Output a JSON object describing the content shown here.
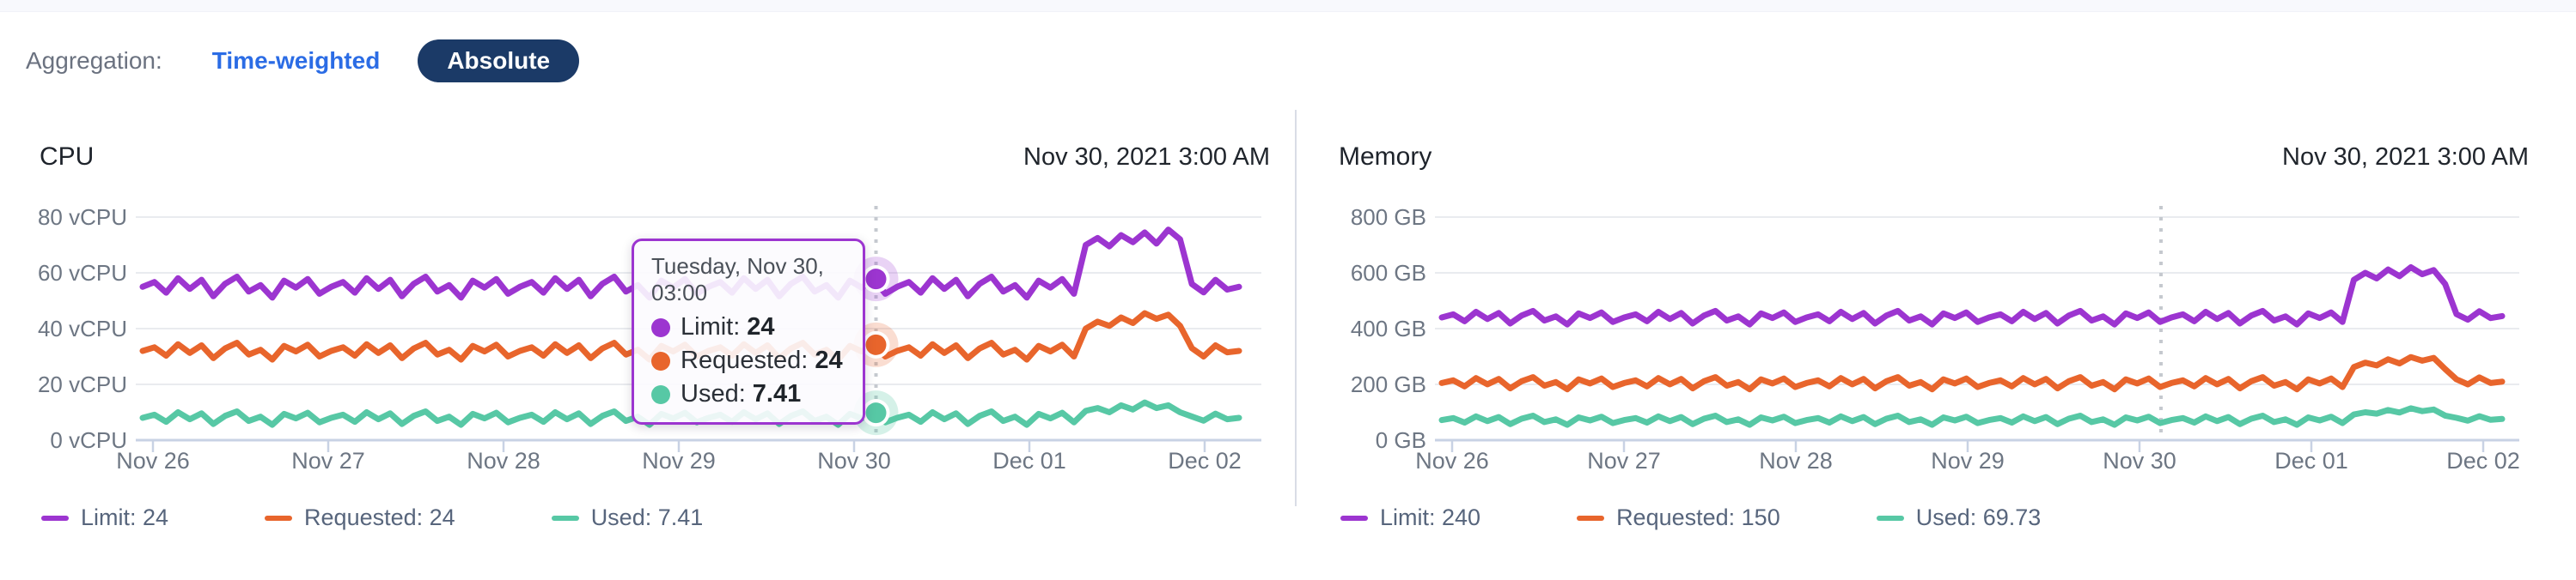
{
  "toolbar": {
    "label": "Aggregation:",
    "options": [
      {
        "label": "Time-weighted",
        "active": false
      },
      {
        "label": "Absolute",
        "active": true
      }
    ]
  },
  "panels": [
    {
      "id": "cpu",
      "title": "CPU",
      "timestamp": "Nov 30, 2021 3:00 AM",
      "legend": [
        {
          "label": "Limit: 24",
          "color": "#9c35d0"
        },
        {
          "label": "Requested: 24",
          "color": "#e8652c"
        },
        {
          "label": "Used: 7.41",
          "color": "#57c8a5"
        }
      ]
    },
    {
      "id": "memory",
      "title": "Memory",
      "timestamp": "Nov 30, 2021 3:00 AM",
      "legend": [
        {
          "label": "Limit: 240",
          "color": "#9c35d0"
        },
        {
          "label": "Requested: 150",
          "color": "#e8652c"
        },
        {
          "label": "Used: 69.73",
          "color": "#57c8a5"
        }
      ]
    }
  ],
  "tooltip": {
    "title": "Tuesday, Nov 30, 03:00",
    "rows": [
      {
        "label": "Limit:",
        "value": "24",
        "color": "#9c35d0"
      },
      {
        "label": "Requested:",
        "value": "24",
        "color": "#e8652c"
      },
      {
        "label": "Used:",
        "value": "7.41",
        "color": "#57c8a5"
      }
    ]
  },
  "colors": {
    "limit_purple": "#9c35d0",
    "requested_orange": "#e8652c",
    "used_teal": "#57c8a5",
    "link_blue": "#2b6ce5",
    "pill_navy": "#1b3a67",
    "gridline": "#e9ebef",
    "axis": "#c8d2e4",
    "hover_line": "#c5c9cf"
  },
  "chart_data": [
    {
      "type": "line",
      "title": "CPU",
      "unit": "vCPU",
      "ylim": [
        0,
        80
      ],
      "y_tick_labels": [
        "80 vCPU",
        "60 vCPU",
        "40 vCPU",
        "20 vCPU",
        "0 vCPU"
      ],
      "y_tick_values": [
        80,
        60,
        40,
        20,
        0
      ],
      "x_tick_labels": [
        "Nov 26",
        "Nov 27",
        "Nov 28",
        "Nov 29",
        "Nov 30",
        "Dec 01",
        "Dec 02"
      ],
      "data_x_days": [
        -0.06,
        6.2
      ],
      "hover_day": 4.125,
      "hover_label": "Tuesday, Nov 30, 03:00",
      "hover_dots": true,
      "grid": true,
      "legend_position": "bottom",
      "series": [
        {
          "name": "Limit",
          "color": "#9c35d0",
          "hover_value": 24,
          "values": [
            55,
            56.7,
            52.9,
            58.1,
            54.2,
            57.5,
            51.6,
            56.1,
            58.6,
            53.3,
            55.6,
            51.1,
            57.2,
            54.7,
            57.8,
            52.5,
            55,
            56.7,
            52.9,
            58.1,
            54.2,
            57.5,
            51.6,
            56.1,
            58.6,
            53.3,
            55.6,
            51.1,
            57.2,
            54.7,
            57.8,
            52.5,
            55,
            56.7,
            52.9,
            58.1,
            54.2,
            57.5,
            51.6,
            56.1,
            58.6,
            53.3,
            55.6,
            51.1,
            57.2,
            54.7,
            57.8,
            52.5,
            55,
            56.7,
            52.9,
            58.1,
            54.2,
            57.5,
            51.6,
            56.1,
            58.6,
            53.3,
            55.6,
            51.1,
            57.2,
            54.7,
            57.8,
            52.5,
            55,
            56.7,
            52.9,
            58.1,
            54.2,
            57.5,
            51.6,
            56.1,
            58.6,
            53.3,
            55.6,
            51.1,
            57.2,
            54.7,
            57.8,
            52.5,
            70,
            72.5,
            69.5,
            73.5,
            71,
            74.5,
            70.5,
            75.5,
            72,
            56,
            53,
            57.5,
            54,
            55
          ]
        },
        {
          "name": "Requested",
          "color": "#e8652c",
          "hover_value": 24,
          "values": [
            32,
            33.3,
            30.3,
            34.4,
            31.3,
            34,
            29.4,
            32.9,
            34.9,
            30.7,
            32.4,
            28.9,
            33.8,
            31.8,
            34.2,
            30,
            32,
            33.3,
            30.3,
            34.4,
            31.3,
            34,
            29.4,
            32.9,
            34.9,
            30.7,
            32.4,
            28.9,
            33.8,
            31.8,
            34.2,
            30,
            32,
            33.3,
            30.3,
            34.4,
            31.3,
            34,
            29.4,
            32.9,
            34.9,
            30.7,
            32.4,
            28.9,
            33.8,
            31.8,
            34.2,
            30,
            32,
            33.3,
            30.3,
            34.4,
            31.3,
            34,
            29.4,
            32.9,
            34.9,
            30.7,
            32.4,
            28.9,
            33.8,
            31.8,
            34.2,
            30,
            32,
            33.3,
            30.3,
            34.4,
            31.3,
            34,
            29.4,
            32.9,
            34.9,
            30.7,
            32.4,
            28.9,
            33.8,
            31.8,
            34.2,
            30,
            40,
            42.5,
            41,
            44,
            42,
            45.5,
            43.5,
            45,
            41,
            33,
            30,
            34,
            31.5,
            32
          ]
        },
        {
          "name": "Used",
          "color": "#57c8a5",
          "hover_value": 7.41,
          "values": [
            8,
            9.1,
            6.6,
            10,
            7.5,
            9.6,
            5.8,
            8.7,
            10.3,
            6.9,
            8.4,
            5.5,
            9.4,
            7.8,
            9.8,
            6.4,
            8,
            9.1,
            6.6,
            10,
            7.5,
            9.6,
            5.8,
            8.7,
            10.3,
            6.9,
            8.4,
            5.5,
            9.4,
            7.8,
            9.8,
            6.4,
            8,
            9.1,
            6.6,
            10,
            7.5,
            9.6,
            5.8,
            8.7,
            10.3,
            6.9,
            8.4,
            5.5,
            9.4,
            7.8,
            9.8,
            6.4,
            8,
            9.1,
            6.6,
            10,
            7.5,
            9.6,
            5.8,
            8.7,
            10.3,
            6.9,
            8.4,
            5.5,
            9.4,
            7.8,
            9.8,
            6.4,
            8,
            9.1,
            6.6,
            10,
            7.5,
            9.6,
            5.8,
            8.7,
            10.3,
            6.9,
            8.4,
            5.5,
            9.4,
            7.8,
            9.8,
            6.4,
            10.5,
            11.5,
            10,
            12.5,
            11,
            13.5,
            11.5,
            12.5,
            10,
            8.5,
            7,
            9.5,
            7.5,
            8
          ]
        }
      ]
    },
    {
      "type": "line",
      "title": "Memory",
      "unit": "GB",
      "ylim": [
        0,
        800
      ],
      "y_tick_labels": [
        "800 GB",
        "600 GB",
        "400 GB",
        "200 GB",
        "0 GB"
      ],
      "y_tick_values": [
        800,
        600,
        400,
        200,
        0
      ],
      "x_tick_labels": [
        "Nov 26",
        "Nov 27",
        "Nov 28",
        "Nov 29",
        "Nov 30",
        "Dec 01",
        "Dec 02"
      ],
      "data_x_days": [
        -0.06,
        6.2
      ],
      "hover_day": 4.125,
      "hover_dots": false,
      "grid": true,
      "legend_position": "bottom",
      "series": [
        {
          "name": "Limit",
          "color": "#9c35d0",
          "hover_value": 240,
          "values": [
            440,
            451,
            426.5,
            460,
            434.6,
            456,
            418.4,
            447,
            463.4,
            429,
            443.6,
            415,
            454.4,
            438.2,
            458,
            424,
            440,
            451,
            426.5,
            460,
            434.6,
            456,
            418.4,
            447,
            463.4,
            429,
            443.6,
            415,
            454.4,
            438.2,
            458,
            424,
            440,
            451,
            426.5,
            460,
            434.6,
            456,
            418.4,
            447,
            463.4,
            429,
            443.6,
            415,
            454.4,
            438.2,
            458,
            424,
            440,
            451,
            426.5,
            460,
            434.6,
            456,
            418.4,
            447,
            463.4,
            429,
            443.6,
            415,
            454.4,
            438.2,
            458,
            424,
            440,
            451,
            426.5,
            460,
            434.6,
            456,
            418.4,
            447,
            463.4,
            429,
            443.6,
            415,
            454.4,
            438.2,
            458,
            424,
            575,
            600,
            580,
            612,
            588,
            620,
            595,
            610,
            560,
            452,
            432,
            462,
            438,
            445
          ]
        },
        {
          "name": "Requested",
          "color": "#e8652c",
          "hover_value": 150,
          "values": [
            205,
            214.6,
            193,
            222.6,
            200.2,
            219.4,
            185.8,
            211.4,
            225.8,
            195.4,
            208.2,
            182.6,
            217.8,
            203.4,
            221,
            190.6,
            205,
            214.6,
            193,
            222.6,
            200.2,
            219.4,
            185.8,
            211.4,
            225.8,
            195.4,
            208.2,
            182.6,
            217.8,
            203.4,
            221,
            190.6,
            205,
            214.6,
            193,
            222.6,
            200.2,
            219.4,
            185.8,
            211.4,
            225.8,
            195.4,
            208.2,
            182.6,
            217.8,
            203.4,
            221,
            190.6,
            205,
            214.6,
            193,
            222.6,
            200.2,
            219.4,
            185.8,
            211.4,
            225.8,
            195.4,
            208.2,
            182.6,
            217.8,
            203.4,
            221,
            190.6,
            205,
            214.6,
            193,
            222.6,
            200.2,
            219.4,
            185.8,
            211.4,
            225.8,
            195.4,
            208.2,
            182.6,
            217.8,
            203.4,
            221,
            190.6,
            262,
            278,
            268,
            290,
            275,
            298,
            285,
            295,
            255,
            218,
            200,
            225,
            205,
            210
          ]
        },
        {
          "name": "Used",
          "color": "#57c8a5",
          "hover_value": 69.73,
          "values": [
            72,
            79.2,
            63,
            85.2,
            68.4,
            82.8,
            57.6,
            76.8,
            87.6,
            64.8,
            74.4,
            55.2,
            81.6,
            70.8,
            84,
            61.2,
            72,
            79.2,
            63,
            85.2,
            68.4,
            82.8,
            57.6,
            76.8,
            87.6,
            64.8,
            74.4,
            55.2,
            81.6,
            70.8,
            84,
            61.2,
            72,
            79.2,
            63,
            85.2,
            68.4,
            82.8,
            57.6,
            76.8,
            87.6,
            64.8,
            74.4,
            55.2,
            81.6,
            70.8,
            84,
            61.2,
            72,
            79.2,
            63,
            85.2,
            68.4,
            82.8,
            57.6,
            76.8,
            87.6,
            64.8,
            74.4,
            55.2,
            81.6,
            70.8,
            84,
            61.2,
            72,
            79.2,
            63,
            85.2,
            68.4,
            82.8,
            57.6,
            76.8,
            87.6,
            64.8,
            74.4,
            55.2,
            81.6,
            70.8,
            84,
            61.2,
            92,
            100,
            95,
            108,
            99,
            114,
            104,
            110,
            88,
            80,
            70,
            86,
            73,
            76
          ]
        }
      ]
    }
  ]
}
